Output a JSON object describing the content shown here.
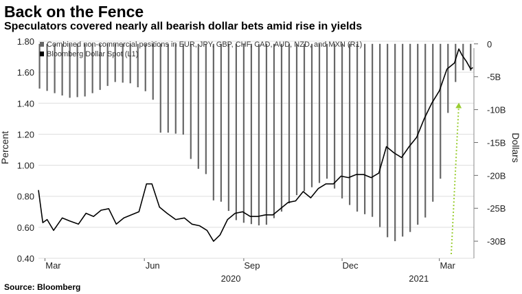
{
  "title": "Back on the Fence",
  "subtitle": "Speculators covered nearly all bearish dollar bets amid rise in yields",
  "source": "Source: Bloomberg",
  "chart_data": {
    "type": "bar+line",
    "y_left": {
      "label": "Percent",
      "ticks": [
        "0.40",
        "0.60",
        "0.80",
        "1.00",
        "1.20",
        "1.40",
        "1.60",
        "1.80"
      ],
      "range": [
        0.4,
        1.8
      ]
    },
    "y_right": {
      "label": "Dollars",
      "ticks": [
        "0",
        "-5B",
        "-10B",
        "-15B",
        "-20B",
        "-25B",
        "-30B"
      ],
      "range": [
        -32.6,
        0.4
      ]
    },
    "x": {
      "month_labels": [
        "Mar",
        "Jun",
        "Sep",
        "Dec",
        "Mar"
      ],
      "year_labels": [
        "2020",
        "2021"
      ],
      "range": [
        "2020-02-24",
        "2021-04-02"
      ]
    },
    "legend": {
      "placement": "top-left",
      "items": [
        {
          "label": "Combined non-commercial positions in EUR, JPY, GBP, CHF, CAD, AUD, NZD, and MXN (R1)",
          "color": "#666666",
          "marker": "hatched-square"
        },
        {
          "label": "Bloomberg Dollar Spot (L1)",
          "color": "#000000",
          "marker": "square"
        }
      ]
    },
    "series": [
      {
        "name": "Combined non-commercial positions in EUR, JPY, GBP, CHF, CAD, AUD, NZD, and MXN (R1)",
        "axis": "right",
        "unit": "USD billions",
        "style": "weekly bars",
        "points": [
          [
            "2020-02-25",
            -6.8
          ],
          [
            "2020-03-10",
            -7.5
          ],
          [
            "2020-03-24",
            -8.2
          ],
          [
            "2020-04-07",
            -8.0
          ],
          [
            "2020-04-21",
            -7.0
          ],
          [
            "2020-05-05",
            -5.8
          ],
          [
            "2020-05-19",
            -6.0
          ],
          [
            "2020-06-02",
            -7.2
          ],
          [
            "2020-06-09",
            -8.5
          ],
          [
            "2020-06-16",
            -13.5
          ],
          [
            "2020-06-23",
            -13.5
          ],
          [
            "2020-07-07",
            -13.8
          ],
          [
            "2020-07-14",
            -17.5
          ],
          [
            "2020-07-21",
            -19.0
          ],
          [
            "2020-07-28",
            -19.8
          ],
          [
            "2020-08-04",
            -23.8
          ],
          [
            "2020-08-11",
            -24.0
          ],
          [
            "2020-08-25",
            -26.8
          ],
          [
            "2020-09-01",
            -27.2
          ],
          [
            "2020-09-15",
            -27.6
          ],
          [
            "2020-09-22",
            -27.5
          ],
          [
            "2020-10-06",
            -25.5
          ],
          [
            "2020-10-20",
            -23.0
          ],
          [
            "2020-11-03",
            -21.8
          ],
          [
            "2020-11-17",
            -20.5
          ],
          [
            "2020-12-01",
            -23.5
          ],
          [
            "2020-12-15",
            -25.5
          ],
          [
            "2020-12-29",
            -26.3
          ],
          [
            "2021-01-12",
            -29.4
          ],
          [
            "2021-01-19",
            -30.0
          ],
          [
            "2021-02-02",
            -28.6
          ],
          [
            "2021-02-16",
            -26.4
          ],
          [
            "2021-02-23",
            -24.0
          ],
          [
            "2021-03-02",
            -20.5
          ],
          [
            "2021-03-09",
            -10.5
          ],
          [
            "2021-03-16",
            -5.8
          ],
          [
            "2021-03-23",
            -4.0
          ],
          [
            "2021-03-30",
            -4.1
          ]
        ]
      },
      {
        "name": "Bloomberg Dollar Spot (L1)",
        "axis": "left",
        "unit": "percent",
        "style": "line",
        "points": [
          [
            "2020-02-24",
            0.84
          ],
          [
            "2020-02-28",
            0.63
          ],
          [
            "2020-03-03",
            0.65
          ],
          [
            "2020-03-09",
            0.58
          ],
          [
            "2020-03-17",
            0.66
          ],
          [
            "2020-03-24",
            0.64
          ],
          [
            "2020-04-01",
            0.62
          ],
          [
            "2020-04-08",
            0.69
          ],
          [
            "2020-04-15",
            0.67
          ],
          [
            "2020-04-22",
            0.71
          ],
          [
            "2020-04-29",
            0.72
          ],
          [
            "2020-05-06",
            0.62
          ],
          [
            "2020-05-13",
            0.66
          ],
          [
            "2020-05-20",
            0.68
          ],
          [
            "2020-05-27",
            0.7
          ],
          [
            "2020-06-03",
            0.88
          ],
          [
            "2020-06-08",
            0.88
          ],
          [
            "2020-06-15",
            0.73
          ],
          [
            "2020-06-22",
            0.69
          ],
          [
            "2020-06-30",
            0.65
          ],
          [
            "2020-07-08",
            0.66
          ],
          [
            "2020-07-15",
            0.62
          ],
          [
            "2020-07-22",
            0.61
          ],
          [
            "2020-07-29",
            0.58
          ],
          [
            "2020-08-04",
            0.51
          ],
          [
            "2020-08-10",
            0.55
          ],
          [
            "2020-08-17",
            0.65
          ],
          [
            "2020-08-24",
            0.69
          ],
          [
            "2020-08-31",
            0.7
          ],
          [
            "2020-09-07",
            0.67
          ],
          [
            "2020-09-14",
            0.67
          ],
          [
            "2020-09-21",
            0.68
          ],
          [
            "2020-09-28",
            0.68
          ],
          [
            "2020-10-05",
            0.72
          ],
          [
            "2020-10-12",
            0.76
          ],
          [
            "2020-10-19",
            0.77
          ],
          [
            "2020-10-26",
            0.83
          ],
          [
            "2020-11-02",
            0.79
          ],
          [
            "2020-11-09",
            0.85
          ],
          [
            "2020-11-16",
            0.88
          ],
          [
            "2020-11-23",
            0.88
          ],
          [
            "2020-11-30",
            0.93
          ],
          [
            "2020-12-07",
            0.92
          ],
          [
            "2020-12-14",
            0.94
          ],
          [
            "2020-12-21",
            0.94
          ],
          [
            "2020-12-28",
            0.92
          ],
          [
            "2021-01-04",
            0.95
          ],
          [
            "2021-01-11",
            1.12
          ],
          [
            "2021-01-18",
            1.08
          ],
          [
            "2021-01-25",
            1.05
          ],
          [
            "2021-02-01",
            1.12
          ],
          [
            "2021-02-08",
            1.18
          ],
          [
            "2021-02-15",
            1.3
          ],
          [
            "2021-02-22",
            1.4
          ],
          [
            "2021-03-01",
            1.48
          ],
          [
            "2021-03-08",
            1.62
          ],
          [
            "2021-03-15",
            1.66
          ],
          [
            "2021-03-19",
            1.75
          ],
          [
            "2021-03-22",
            1.71
          ],
          [
            "2021-03-26",
            1.67
          ],
          [
            "2021-03-30",
            1.62
          ],
          [
            "2021-04-01",
            1.63
          ]
        ]
      }
    ],
    "annotations": [
      {
        "kind": "dotted-arrow",
        "color": "#9acd32",
        "from": [
          "2021-03-12",
          0.4
        ],
        "to": [
          "2021-03-19",
          1.39
        ]
      }
    ]
  }
}
